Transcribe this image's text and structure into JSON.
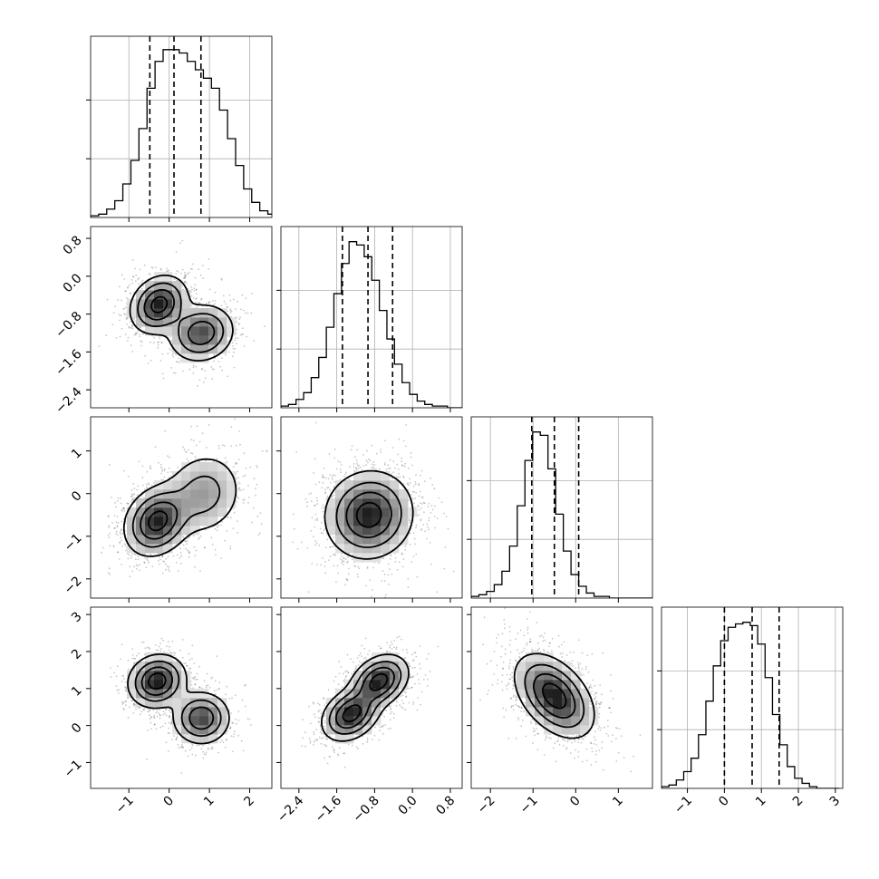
{
  "chart_data": {
    "type": "corner",
    "title": "",
    "parameters": [
      "",
      "",
      "",
      ""
    ],
    "quantiles": [
      [
        -0.48,
        0.12,
        0.79
      ],
      [
        -1.48,
        -0.94,
        -0.42
      ],
      [
        -1.03,
        -0.5,
        0.07
      ],
      [
        0.0,
        0.75,
        1.48
      ]
    ],
    "axis_ranges": [
      [
        -1.95,
        2.55
      ],
      [
        -2.78,
        1.05
      ],
      [
        -2.45,
        1.8
      ],
      [
        -1.7,
        3.2
      ]
    ],
    "x_ticks": [
      [
        -1,
        0,
        1,
        2
      ],
      [
        -2.4,
        -1.6,
        -0.8,
        0.0,
        0.8
      ],
      [
        -2,
        -1,
        0,
        1
      ],
      [
        -1,
        0,
        1,
        2,
        3
      ]
    ],
    "x_tick_labels": [
      [
        "−1",
        "0",
        "1",
        "2"
      ],
      [
        "−2.4",
        "−1.6",
        "−0.8",
        "0.0",
        "0.8"
      ],
      [
        "−2",
        "−1",
        "0",
        "1"
      ],
      [
        "−1",
        "0",
        "1",
        "2",
        "3"
      ]
    ],
    "y_ticks": [
      [],
      [
        0.8,
        0.0,
        -0.8,
        -1.6,
        -2.4
      ],
      [
        1,
        0,
        -1,
        -2
      ],
      [
        3,
        2,
        1,
        0,
        -1
      ]
    ],
    "y_tick_labels": [
      [],
      [
        "0.8",
        "0.0",
        "−0.8",
        "−1.6",
        "−2.4"
      ],
      [
        "1",
        "0",
        "−1",
        "−2"
      ],
      [
        "3",
        "2",
        "1",
        "0",
        "−1"
      ]
    ],
    "histograms": [
      {
        "bin_edges_start": -1.95,
        "bin_width": 0.2,
        "density": [
          0.01,
          0.02,
          0.05,
          0.1,
          0.2,
          0.34,
          0.53,
          0.77,
          0.93,
          1.0,
          1.0,
          0.98,
          0.93,
          0.88,
          0.83,
          0.77,
          0.64,
          0.47,
          0.31,
          0.17,
          0.09,
          0.04,
          0.02,
          0.01
        ]
      },
      {
        "bin_edges_start": -2.78,
        "bin_width": 0.16,
        "density": [
          0.01,
          0.02,
          0.05,
          0.09,
          0.18,
          0.3,
          0.48,
          0.68,
          0.86,
          0.99,
          0.97,
          0.9,
          0.76,
          0.58,
          0.41,
          0.26,
          0.15,
          0.08,
          0.04,
          0.02,
          0.01,
          0.01,
          0.0,
          0.0
        ]
      },
      {
        "bin_edges_start": -2.45,
        "bin_width": 0.18,
        "density": [
          0.01,
          0.02,
          0.04,
          0.08,
          0.16,
          0.31,
          0.55,
          0.82,
          0.99,
          0.97,
          0.77,
          0.5,
          0.28,
          0.14,
          0.07,
          0.03,
          0.01,
          0.01,
          0.0,
          0.0,
          0.0,
          0.0,
          0.0,
          0.0
        ]
      },
      {
        "bin_edges_start": -1.7,
        "bin_width": 0.2,
        "density": [
          0.01,
          0.02,
          0.05,
          0.1,
          0.18,
          0.32,
          0.52,
          0.73,
          0.88,
          0.96,
          0.98,
          0.99,
          0.97,
          0.86,
          0.66,
          0.44,
          0.26,
          0.13,
          0.06,
          0.03,
          0.01,
          0.0,
          0.0,
          0.0
        ]
      }
    ],
    "pair_panels": [
      {
        "row": 1,
        "col": 0,
        "modes": [
          {
            "x": -0.25,
            "y": -0.6,
            "sx": 0.35,
            "sy": 0.3,
            "rho": 0.2,
            "w": 1.0
          },
          {
            "x": 0.8,
            "y": -1.2,
            "sx": 0.4,
            "sy": 0.3,
            "rho": 0.1,
            "w": 0.8
          }
        ]
      },
      {
        "row": 2,
        "col": 0,
        "modes": [
          {
            "x": -0.3,
            "y": -0.65,
            "sx": 0.4,
            "sy": 0.4,
            "rho": 0.2,
            "w": 1.0
          },
          {
            "x": 0.85,
            "y": 0.0,
            "sx": 0.5,
            "sy": 0.5,
            "rho": 0.1,
            "w": 0.45
          }
        ]
      },
      {
        "row": 2,
        "col": 1,
        "modes": [
          {
            "x": -0.92,
            "y": -0.5,
            "sx": 0.45,
            "sy": 0.5,
            "rho": 0.05,
            "w": 1.0
          }
        ]
      },
      {
        "row": 3,
        "col": 0,
        "modes": [
          {
            "x": -0.3,
            "y": 1.2,
            "sx": 0.35,
            "sy": 0.35,
            "rho": 0.1,
            "w": 1.0
          },
          {
            "x": 0.8,
            "y": 0.2,
            "sx": 0.35,
            "sy": 0.35,
            "rho": 0.0,
            "w": 0.8
          }
        ]
      },
      {
        "row": 3,
        "col": 1,
        "modes": [
          {
            "x": -0.7,
            "y": 1.2,
            "sx": 0.3,
            "sy": 0.35,
            "rho": 0.3,
            "w": 0.9
          },
          {
            "x": -1.3,
            "y": 0.3,
            "sx": 0.3,
            "sy": 0.35,
            "rho": 0.3,
            "w": 0.9
          }
        ]
      },
      {
        "row": 3,
        "col": 2,
        "modes": [
          {
            "x": -0.5,
            "y": 0.8,
            "sx": 0.45,
            "sy": 0.55,
            "rho": -0.45,
            "w": 1.0
          }
        ]
      }
    ],
    "contour_levels": [
      0.12,
      0.32,
      0.58,
      0.86
    ],
    "grid": true,
    "legend": "none"
  }
}
